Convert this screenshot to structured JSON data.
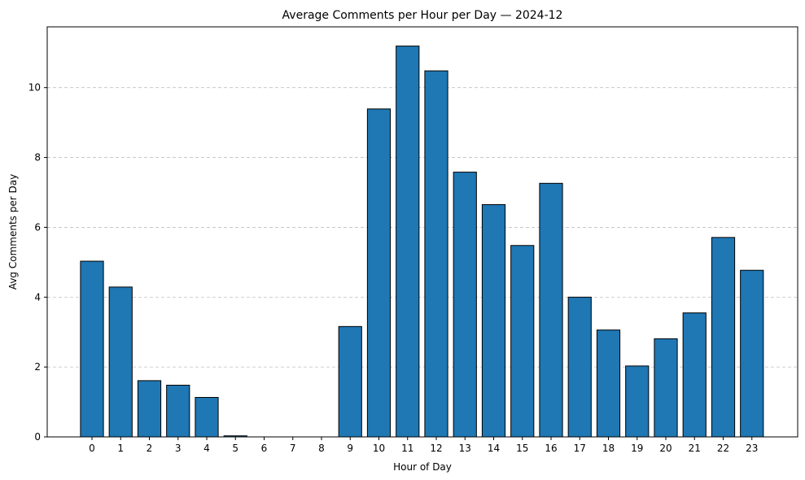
{
  "chart_data": {
    "type": "bar",
    "title": "Average Comments per Hour per Day — 2024-12",
    "xlabel": "Hour of Day",
    "ylabel": "Avg Comments per Day",
    "categories": [
      "0",
      "1",
      "2",
      "3",
      "4",
      "5",
      "6",
      "7",
      "8",
      "9",
      "10",
      "11",
      "12",
      "13",
      "14",
      "15",
      "16",
      "17",
      "18",
      "19",
      "20",
      "21",
      "22",
      "23"
    ],
    "values": [
      5.03,
      4.29,
      1.61,
      1.48,
      1.13,
      0.03,
      0,
      0,
      0,
      3.16,
      9.39,
      11.19,
      10.48,
      7.58,
      6.65,
      5.48,
      7.26,
      4.0,
      3.06,
      2.03,
      2.81,
      3.55,
      5.71,
      4.77
    ],
    "y_ticks": [
      0,
      2,
      4,
      6,
      8,
      10
    ],
    "ylim": [
      0,
      11.74
    ],
    "grid": "y-dashed",
    "colors": {
      "bar": "#1f77b4",
      "edge": "#000000",
      "grid": "#c0c0c0"
    }
  }
}
